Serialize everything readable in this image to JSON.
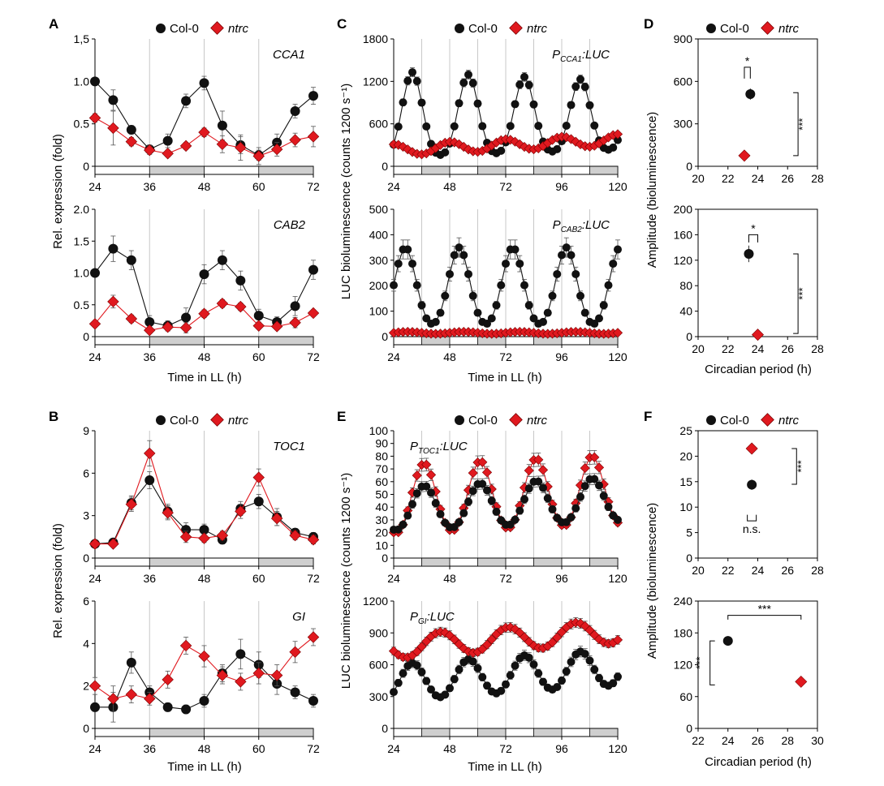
{
  "figure": {
    "panel_letters": {
      "A": "A",
      "B": "B",
      "C": "C",
      "D": "D",
      "E": "E",
      "F": "F"
    },
    "legend_wt": "Col-0",
    "legend_mut": "ntrc",
    "color_wt": "#111111",
    "color_mut": "#e0191f",
    "shade_color": "#cfcfcf",
    "gridline_color": "#c8c8c8",
    "xlabel_time": "Time in LL (h)",
    "xlabel_period": "Circadian period (h)",
    "ylabel_rel": "Rel. expression (fold)",
    "ylabel_lum": "LUC bioluminescence (counts 1200 s⁻¹)",
    "ylabel_amp": "Amplitude (bioluminescence)"
  },
  "chart_data": [
    {
      "id": "A1",
      "type": "line",
      "title": "CCA1",
      "xlim": [
        24,
        72
      ],
      "ylim": [
        0,
        1.5
      ],
      "xticks": [
        24,
        36,
        48,
        60,
        72
      ],
      "yticks": [
        0,
        0.5,
        1.0,
        1.5
      ],
      "ytick_labels": [
        "0",
        "0.5",
        "1.0",
        "1,5"
      ],
      "shade": [
        [
          36,
          48
        ],
        [
          60,
          72
        ]
      ],
      "grid": [
        36,
        48,
        60
      ],
      "series": [
        {
          "name": "Col-0",
          "x": [
            24,
            28,
            32,
            36,
            40,
            44,
            48,
            52,
            56,
            60,
            64,
            68,
            72
          ],
          "y": [
            1.0,
            0.78,
            0.43,
            0.2,
            0.3,
            0.77,
            0.98,
            0.48,
            0.25,
            0.13,
            0.28,
            0.65,
            0.83
          ],
          "err": [
            0.03,
            0.12,
            0.05,
            0.05,
            0.08,
            0.08,
            0.08,
            0.17,
            0.1,
            0.06,
            0.1,
            0.08,
            0.1
          ]
        },
        {
          "name": "ntrc",
          "x": [
            24,
            28,
            32,
            36,
            40,
            44,
            48,
            52,
            56,
            60,
            64,
            68,
            72
          ],
          "y": [
            0.57,
            0.45,
            0.29,
            0.19,
            0.15,
            0.24,
            0.4,
            0.26,
            0.22,
            0.12,
            0.2,
            0.31,
            0.35
          ],
          "err": [
            0.05,
            0.2,
            0.05,
            0.05,
            0.04,
            0.04,
            0.05,
            0.1,
            0.15,
            0.1,
            0.08,
            0.08,
            0.12
          ]
        }
      ]
    },
    {
      "id": "A2",
      "type": "line",
      "title": "CAB2",
      "xlim": [
        24,
        72
      ],
      "ylim": [
        0,
        2.0
      ],
      "xticks": [
        24,
        36,
        48,
        60,
        72
      ],
      "yticks": [
        0,
        0.5,
        1.0,
        1.5,
        2.0
      ],
      "ytick_labels": [
        "0",
        "0.5",
        "1.0",
        "1.5",
        "2.0"
      ],
      "shade": [
        [
          36,
          48
        ],
        [
          60,
          72
        ]
      ],
      "grid": [
        36,
        48,
        60
      ],
      "series": [
        {
          "name": "Col-0",
          "x": [
            24,
            28,
            32,
            36,
            40,
            44,
            48,
            52,
            56,
            60,
            64,
            68,
            72
          ],
          "y": [
            1.0,
            1.38,
            1.2,
            0.23,
            0.17,
            0.3,
            0.98,
            1.2,
            0.88,
            0.33,
            0.23,
            0.48,
            1.05
          ],
          "err": [
            0.05,
            0.2,
            0.15,
            0.1,
            0.08,
            0.15,
            0.15,
            0.15,
            0.15,
            0.1,
            0.08,
            0.15,
            0.15
          ]
        },
        {
          "name": "ntrc",
          "x": [
            24,
            28,
            32,
            36,
            40,
            44,
            48,
            52,
            56,
            60,
            64,
            68,
            72
          ],
          "y": [
            0.2,
            0.55,
            0.28,
            0.1,
            0.15,
            0.14,
            0.36,
            0.52,
            0.47,
            0.17,
            0.16,
            0.22,
            0.37
          ],
          "err": [
            0.05,
            0.1,
            0.06,
            0.05,
            0.06,
            0.08,
            0.06,
            0.06,
            0.06,
            0.05,
            0.05,
            0.08,
            0.05
          ]
        }
      ]
    },
    {
      "id": "B1",
      "type": "line",
      "title": "TOC1",
      "xlim": [
        24,
        72
      ],
      "ylim": [
        0,
        9
      ],
      "xticks": [
        24,
        36,
        48,
        60,
        72
      ],
      "yticks": [
        0,
        3,
        6,
        9
      ],
      "ytick_labels": [
        "0",
        "3",
        "6",
        "9"
      ],
      "shade": [
        [
          36,
          48
        ],
        [
          60,
          72
        ]
      ],
      "grid": [
        36,
        48,
        60
      ],
      "series": [
        {
          "name": "Col-0",
          "x": [
            24,
            28,
            32,
            36,
            40,
            44,
            48,
            52,
            56,
            60,
            64,
            68,
            72
          ],
          "y": [
            1.0,
            1.1,
            3.9,
            5.5,
            3.3,
            2.0,
            2.0,
            1.3,
            3.5,
            4.0,
            2.9,
            1.8,
            1.5
          ],
          "err": [
            0.1,
            0.2,
            0.5,
            0.6,
            0.5,
            0.5,
            0.4,
            0.3,
            0.5,
            0.5,
            0.6,
            0.3,
            0.3
          ]
        },
        {
          "name": "ntrc",
          "x": [
            24,
            28,
            32,
            36,
            40,
            44,
            48,
            52,
            56,
            60,
            64,
            68,
            72
          ],
          "y": [
            1.0,
            1.0,
            3.8,
            7.4,
            3.2,
            1.5,
            1.4,
            1.6,
            3.3,
            5.7,
            2.8,
            1.6,
            1.3
          ],
          "err": [
            0.1,
            0.2,
            0.5,
            0.9,
            0.5,
            0.4,
            0.3,
            0.3,
            0.5,
            0.6,
            0.5,
            0.3,
            0.3
          ]
        }
      ]
    },
    {
      "id": "B2",
      "type": "line",
      "title": "GI",
      "xlim": [
        24,
        72
      ],
      "ylim": [
        0,
        6
      ],
      "xticks": [
        24,
        36,
        48,
        60,
        72
      ],
      "yticks": [
        0,
        2,
        4,
        6
      ],
      "ytick_labels": [
        "0",
        "2",
        "4",
        "6"
      ],
      "shade": [
        [
          36,
          48
        ],
        [
          60,
          72
        ]
      ],
      "grid": [
        36,
        48,
        60
      ],
      "series": [
        {
          "name": "Col-0",
          "x": [
            24,
            28,
            32,
            36,
            40,
            44,
            48,
            52,
            56,
            60,
            64,
            68,
            72
          ],
          "y": [
            1.0,
            1.0,
            3.1,
            1.7,
            1.0,
            0.9,
            1.3,
            2.6,
            3.5,
            3.0,
            2.1,
            1.7,
            1.3
          ],
          "err": [
            0.2,
            0.7,
            0.5,
            0.3,
            0.2,
            0.2,
            0.3,
            0.4,
            0.7,
            0.6,
            0.5,
            0.3,
            0.3
          ]
        },
        {
          "name": "ntrc",
          "x": [
            24,
            28,
            32,
            36,
            40,
            44,
            48,
            52,
            56,
            60,
            64,
            68,
            72
          ],
          "y": [
            2.0,
            1.4,
            1.6,
            1.4,
            2.3,
            3.9,
            3.4,
            2.5,
            2.2,
            2.6,
            2.5,
            3.6,
            4.3
          ],
          "err": [
            0.4,
            0.6,
            0.4,
            0.3,
            0.4,
            0.4,
            0.5,
            0.4,
            0.4,
            0.5,
            0.5,
            0.5,
            0.4
          ]
        }
      ]
    },
    {
      "id": "C1",
      "type": "line",
      "title": "P_CCA1:LUC",
      "title_main": "P",
      "title_sub": "CCA1",
      "title_tail": ":LUC",
      "xlim": [
        24,
        120
      ],
      "ylim": [
        0,
        1800
      ],
      "xticks": [
        24,
        48,
        72,
        96,
        120
      ],
      "yticks": [
        0,
        600,
        1200,
        1800
      ],
      "ytick_labels": [
        "0",
        "600",
        "1200",
        "1800"
      ],
      "shade": [
        [
          36,
          48
        ],
        [
          60,
          72
        ],
        [
          84,
          96
        ],
        [
          108,
          120
        ]
      ],
      "grid": [
        36,
        48,
        60,
        72,
        84,
        96,
        108
      ],
      "series": [
        {
          "name": "Col-0",
          "waveform": true,
          "mean": 650,
          "amp": 600,
          "phase": 32,
          "period": 24,
          "sharp": 0.6,
          "decay": 0.002,
          "err_frac": 0.04
        },
        {
          "name": "ntrc",
          "waveform": true,
          "mean": 230,
          "amp": 80,
          "phase": 48,
          "period": 24,
          "sharp": 0,
          "trend": 1.5,
          "err_frac": 0.05
        }
      ]
    },
    {
      "id": "C2",
      "type": "line",
      "title": "P_CAB2:LUC",
      "title_main": "P",
      "title_sub": "CAB2",
      "title_tail": ":LUC",
      "xlim": [
        24,
        120
      ],
      "ylim": [
        0,
        500
      ],
      "xticks": [
        24,
        48,
        72,
        96,
        120
      ],
      "yticks": [
        0,
        100,
        200,
        300,
        400,
        500
      ],
      "ytick_labels": [
        "0",
        "100",
        "200",
        "300",
        "400",
        "500"
      ],
      "shade": [
        [
          36,
          48
        ],
        [
          60,
          72
        ],
        [
          84,
          96
        ],
        [
          108,
          120
        ]
      ],
      "grid": [
        36,
        48,
        60,
        72,
        84,
        96,
        108
      ],
      "series": [
        {
          "name": "Col-0",
          "waveform": true,
          "mean": 185,
          "amp": 150,
          "phase": 29,
          "period": 23,
          "sharp": 0.4,
          "decay": 0,
          "err_frac": 0.1
        },
        {
          "name": "ntrc",
          "waveform": true,
          "mean": 15,
          "amp": 4,
          "phase": 30,
          "period": 24,
          "sharp": 0,
          "err_frac": 0.2
        }
      ]
    },
    {
      "id": "E1",
      "type": "line",
      "title": "P_TOC1:LUC",
      "title_main": "P",
      "title_sub": "TOC1",
      "title_tail": ":LUC",
      "xlim": [
        24,
        120
      ],
      "ylim": [
        0,
        100
      ],
      "xticks": [
        24,
        48,
        72,
        96,
        120
      ],
      "yticks": [
        0,
        10,
        20,
        30,
        40,
        50,
        60,
        70,
        80,
        90,
        100
      ],
      "ytick_labels": [
        "0",
        "10",
        "20",
        "30",
        "40",
        "50",
        "60",
        "70",
        "80",
        "90",
        "100"
      ],
      "shade": [
        [
          36,
          48
        ],
        [
          60,
          72
        ],
        [
          84,
          96
        ],
        [
          108,
          120
        ]
      ],
      "grid": [
        36,
        48,
        60,
        72,
        84,
        96,
        108
      ],
      "series": [
        {
          "name": "Col-0",
          "waveform": true,
          "mean": 38,
          "amp": 17,
          "phase": 37,
          "period": 24,
          "sharp": 0.2,
          "trend": 0.08,
          "err_frac": 0.06
        },
        {
          "name": "ntrc",
          "waveform": true,
          "mean": 45,
          "amp": 27,
          "phase": 37,
          "period": 24,
          "sharp": 0.2,
          "trend": 0.08,
          "err_frac": 0.06
        }
      ]
    },
    {
      "id": "E2",
      "type": "line",
      "title": "P_GI:LUC",
      "title_main": "P",
      "title_sub": "GI",
      "title_tail": ":LUC",
      "xlim": [
        24,
        120
      ],
      "ylim": [
        0,
        1200
      ],
      "xticks": [
        24,
        48,
        72,
        96,
        120
      ],
      "yticks": [
        0,
        300,
        600,
        900,
        1200
      ],
      "ytick_labels": [
        "0",
        "300",
        "600",
        "900",
        "1200"
      ],
      "shade": [
        [
          36,
          48
        ],
        [
          60,
          72
        ],
        [
          84,
          96
        ],
        [
          108,
          120
        ]
      ],
      "grid": [
        36,
        48,
        60,
        72,
        84,
        96,
        108
      ],
      "series": [
        {
          "name": "Col-0",
          "waveform": true,
          "mean": 430,
          "amp": 170,
          "phase": 32,
          "period": 24,
          "sharp": 0.1,
          "trend": 1.5,
          "err_frac": 0.06
        },
        {
          "name": "ntrc",
          "waveform": true,
          "mean": 770,
          "amp": 110,
          "phase": 44,
          "period": 29,
          "sharp": 0,
          "trend": 1.5,
          "err_frac": 0.04
        }
      ]
    },
    {
      "id": "D1",
      "type": "scatter",
      "xlim": [
        20,
        28
      ],
      "ylim": [
        0,
        900
      ],
      "xticks": [
        20,
        22,
        24,
        26,
        28
      ],
      "yticks": [
        0,
        300,
        600,
        900
      ],
      "ytick_labels": [
        "0",
        "300",
        "600",
        "900"
      ],
      "points": [
        {
          "name": "Col-0",
          "x": 23.5,
          "y": 510,
          "xerr": 0.2,
          "yerr": 40
        },
        {
          "name": "ntrc",
          "x": 23.1,
          "y": 75,
          "xerr": 0.1,
          "yerr": 10
        }
      ],
      "annotations": [
        {
          "text": "*",
          "kind": "bracket-small",
          "x1": 23.1,
          "x2": 23.5,
          "y": 700,
          "y2": 620
        },
        {
          "text": "***",
          "kind": "bracket-vertical",
          "x": 26.7,
          "y1": 75,
          "y2": 520
        }
      ]
    },
    {
      "id": "D2",
      "type": "scatter",
      "xlim": [
        20,
        28
      ],
      "ylim": [
        0,
        200
      ],
      "xticks": [
        20,
        22,
        24,
        26,
        28
      ],
      "yticks": [
        0,
        40,
        80,
        120,
        160,
        200
      ],
      "ytick_labels": [
        "0",
        "40",
        "80",
        "120",
        "160",
        "200"
      ],
      "points": [
        {
          "name": "Col-0",
          "x": 23.4,
          "y": 130,
          "xerr": 0.3,
          "yerr": 13
        },
        {
          "name": "ntrc",
          "x": 24.0,
          "y": 3,
          "xerr": 0.1,
          "yerr": 1
        }
      ],
      "annotations": [
        {
          "text": "*",
          "kind": "bracket-small",
          "x1": 23.4,
          "x2": 24.0,
          "y": 160,
          "y2": 148
        },
        {
          "text": "***",
          "kind": "bracket-vertical",
          "x": 26.7,
          "y1": 5,
          "y2": 130
        }
      ]
    },
    {
      "id": "F1",
      "type": "scatter",
      "xlim": [
        20,
        28
      ],
      "ylim": [
        0,
        25
      ],
      "xticks": [
        20,
        22,
        24,
        26,
        28
      ],
      "yticks": [
        0,
        5,
        10,
        15,
        20,
        25
      ],
      "ytick_labels": [
        "0",
        "5",
        "10",
        "15",
        "20",
        "25"
      ],
      "points": [
        {
          "name": "Col-0",
          "x": 23.6,
          "y": 14.4,
          "xerr": 0.15,
          "yerr": 1.0
        },
        {
          "name": "ntrc",
          "x": 23.6,
          "y": 21.5,
          "xerr": 0.15,
          "yerr": 0.9
        }
      ],
      "annotations": [
        {
          "text": "n.s.",
          "kind": "bracket-ns",
          "x1": 23.3,
          "x2": 23.9,
          "y": 8.5,
          "y2": 7.3
        },
        {
          "text": "***",
          "kind": "bracket-vertical",
          "x": 26.6,
          "y1": 14.5,
          "y2": 21.5
        }
      ]
    },
    {
      "id": "F2",
      "type": "scatter",
      "xlim": [
        22,
        30
      ],
      "ylim": [
        0,
        240
      ],
      "xticks": [
        22,
        24,
        26,
        28,
        30
      ],
      "yticks": [
        0,
        60,
        120,
        180,
        240
      ],
      "ytick_labels": [
        "0",
        "60",
        "120",
        "180",
        "240"
      ],
      "points": [
        {
          "name": "Col-0",
          "x": 24.0,
          "y": 165,
          "xerr": 0.2,
          "yerr": 6
        },
        {
          "name": "ntrc",
          "x": 28.9,
          "y": 88,
          "xerr": 0.2,
          "yerr": 4
        }
      ],
      "annotations": [
        {
          "text": "***",
          "kind": "bracket-top",
          "x1": 24.0,
          "x2": 28.9,
          "y": 213,
          "y2": 205
        },
        {
          "text": "***",
          "kind": "bracket-vertical-left",
          "x": 22.8,
          "y1": 82,
          "y2": 165
        }
      ]
    }
  ]
}
